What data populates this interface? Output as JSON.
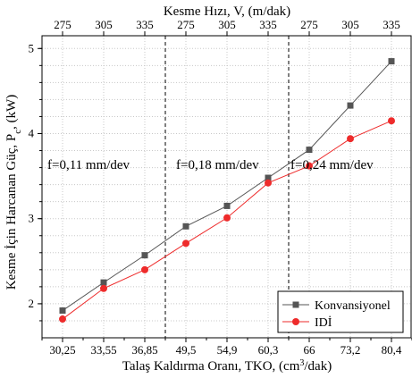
{
  "chart_data": {
    "type": "line",
    "top_axis_title": "Kesme Hızı, V, (m/dak)",
    "top_categories": [
      "275",
      "305",
      "335",
      "275",
      "305",
      "335",
      "275",
      "305",
      "335"
    ],
    "xlabel_prefix": "Talaş Kaldırma Oranı, TKO, (cm",
    "xlabel_sup": "3",
    "xlabel_suffix": "/dak)",
    "ylabel": "Kesme İçin Harcanan Güç, P",
    "ylabel_sub": "c",
    "ylabel_suffix": ", (kW)",
    "categories": [
      "30,25",
      "33,55",
      "36,85",
      "49,5",
      "54,9",
      "60,3",
      "66",
      "73,2",
      "80,4"
    ],
    "ylim": [
      1.6,
      5.15
    ],
    "yticks": [
      2,
      3,
      4,
      5
    ],
    "grid": true,
    "legend_position": "bottom-right",
    "section_labels": [
      "f=0,11 mm/dev",
      "f=0,18 mm/dev",
      "f=0,24 mm/dev"
    ],
    "series": [
      {
        "name": "Konvansiyonel",
        "color": "#555555",
        "marker": "square",
        "values": [
          1.92,
          2.25,
          2.57,
          2.91,
          3.15,
          3.48,
          3.81,
          4.33,
          4.85
        ]
      },
      {
        "name": "IDİ",
        "color": "#ee2b2b",
        "marker": "circle",
        "values": [
          1.82,
          2.18,
          2.4,
          2.71,
          3.01,
          3.42,
          3.62,
          3.94,
          4.15
        ]
      }
    ]
  }
}
